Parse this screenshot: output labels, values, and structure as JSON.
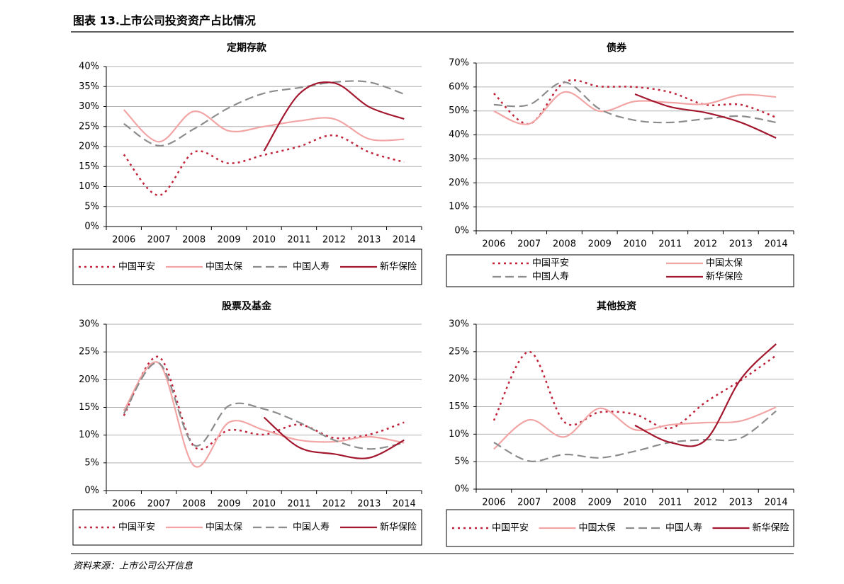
{
  "header": {
    "title": "图表 13.上市公司投资资产占比情况"
  },
  "source": "资料来源：上市公司公开信息",
  "chart_data": [
    {
      "type": "line",
      "title": "定期存款",
      "categories": [
        "2006",
        "2007",
        "2008",
        "2009",
        "2010",
        "2011",
        "2012",
        "2013",
        "2014"
      ],
      "ylim": [
        0,
        40
      ],
      "yticks": [
        {
          "value": 0,
          "label": "0%"
        },
        {
          "value": 5,
          "label": "5%"
        },
        {
          "value": 10,
          "label": "10%"
        },
        {
          "value": 15,
          "label": "15%"
        },
        {
          "value": 20,
          "label": "20%"
        },
        {
          "value": 25,
          "label": "25%"
        },
        {
          "value": 30,
          "label": "30%"
        },
        {
          "value": 35,
          "label": "35%"
        },
        {
          "value": 40,
          "label": "40%"
        }
      ],
      "grid": true,
      "series": [
        {
          "name": "中国平安",
          "color": "#c0233a",
          "dash": "dotted",
          "values": [
            18,
            7.8,
            18.6,
            15.8,
            17.9,
            20,
            22.8,
            18.6,
            16.1
          ]
        },
        {
          "name": "中国太保",
          "color": "#f2a5a5",
          "dash": "solid",
          "values": [
            29.2,
            21.2,
            28.8,
            23.9,
            25,
            26.4,
            26.9,
            21.9,
            21.8
          ]
        },
        {
          "name": "中国人寿",
          "color": "#8c8c8c",
          "dash": "dashed",
          "values": [
            25.7,
            20.2,
            24.4,
            29.7,
            33.3,
            34.7,
            36.1,
            36.1,
            33.1
          ]
        },
        {
          "name": "新华保险",
          "color": "#a3182f",
          "dash": "solid",
          "values": [
            null,
            null,
            null,
            null,
            18.9,
            33.1,
            35.9,
            29.9,
            26.9
          ]
        }
      ]
    },
    {
      "type": "line",
      "title": "债券",
      "categories": [
        "2006",
        "2007",
        "2008",
        "2009",
        "2010",
        "2011",
        "2012",
        "2013",
        "2014"
      ],
      "ylim": [
        0,
        70
      ],
      "yticks": [
        {
          "value": 0,
          "label": "0%"
        },
        {
          "value": 10,
          "label": "10%"
        },
        {
          "value": 20,
          "label": "20%"
        },
        {
          "value": 30,
          "label": "30%"
        },
        {
          "value": 40,
          "label": "40%"
        },
        {
          "value": 50,
          "label": "50%"
        },
        {
          "value": 60,
          "label": "60%"
        },
        {
          "value": 70,
          "label": "70%"
        }
      ],
      "grid": true,
      "series": [
        {
          "name": "中国平安",
          "color": "#c0233a",
          "dash": "dotted",
          "values": [
            57.3,
            44.6,
            62,
            60.2,
            60,
            57.8,
            52.6,
            52.6,
            47.3
          ]
        },
        {
          "name": "中国太保",
          "color": "#f2a5a5",
          "dash": "solid",
          "values": [
            49.9,
            44.6,
            57.9,
            49.9,
            54,
            53.5,
            52.9,
            56.7,
            55.8
          ]
        },
        {
          "name": "中国人寿",
          "color": "#8c8c8c",
          "dash": "dashed",
          "values": [
            52.6,
            52.6,
            62,
            50.8,
            46.1,
            45.2,
            46.7,
            47.8,
            45.2
          ]
        },
        {
          "name": "新华保险",
          "color": "#a3182f",
          "dash": "solid",
          "values": [
            null,
            null,
            null,
            null,
            57,
            51.7,
            49.3,
            45.2,
            38.7
          ]
        }
      ]
    },
    {
      "type": "line",
      "title": "股票及基金",
      "categories": [
        "2006",
        "2007",
        "2008",
        "2009",
        "2010",
        "2011",
        "2012",
        "2013",
        "2014"
      ],
      "ylim": [
        0,
        30
      ],
      "yticks": [
        {
          "value": 0,
          "label": "0%"
        },
        {
          "value": 5,
          "label": "5%"
        },
        {
          "value": 10,
          "label": "10%"
        },
        {
          "value": 15,
          "label": "15%"
        },
        {
          "value": 20,
          "label": "20%"
        },
        {
          "value": 25,
          "label": "25%"
        },
        {
          "value": 30,
          "label": "30%"
        }
      ],
      "grid": true,
      "series": [
        {
          "name": "中国平安",
          "color": "#c0233a",
          "dash": "dotted",
          "values": [
            13.5,
            24.1,
            8,
            10.9,
            10.1,
            11.9,
            9.5,
            10.1,
            12.3
          ]
        },
        {
          "name": "中国太保",
          "color": "#f2a5a5",
          "dash": "solid",
          "values": [
            14.4,
            23,
            4.5,
            12.3,
            10.9,
            9.1,
            8.8,
            9.7,
            8.6
          ]
        },
        {
          "name": "中国人寿",
          "color": "#8c8c8c",
          "dash": "dashed",
          "values": [
            13.9,
            23,
            8.2,
            15.3,
            14.7,
            12.3,
            9.1,
            7.5,
            8.6
          ]
        },
        {
          "name": "新华保险",
          "color": "#a3182f",
          "dash": "solid",
          "values": [
            null,
            null,
            null,
            null,
            13.2,
            7.8,
            6.6,
            5.9,
            9.1
          ]
        }
      ]
    },
    {
      "type": "line",
      "title": "其他投资",
      "categories": [
        "2006",
        "2007",
        "2008",
        "2009",
        "2010",
        "2011",
        "2012",
        "2013",
        "2014"
      ],
      "ylim": [
        0,
        30
      ],
      "yticks": [
        {
          "value": 0,
          "label": "0%"
        },
        {
          "value": 5,
          "label": "5%"
        },
        {
          "value": 10,
          "label": "10%"
        },
        {
          "value": 15,
          "label": "15%"
        },
        {
          "value": 20,
          "label": "20%"
        },
        {
          "value": 25,
          "label": "25%"
        },
        {
          "value": 30,
          "label": "30%"
        }
      ],
      "grid": true,
      "series": [
        {
          "name": "中国平安",
          "color": "#c0233a",
          "dash": "dotted",
          "values": [
            12.5,
            25,
            12.2,
            14,
            13.6,
            11.1,
            15.8,
            19.8,
            24.3
          ]
        },
        {
          "name": "中国太保",
          "color": "#f2a5a5",
          "dash": "solid",
          "values": [
            7.3,
            12.6,
            9.5,
            14.7,
            10.8,
            11.7,
            12.1,
            12.4,
            14.9
          ]
        },
        {
          "name": "中国人寿",
          "color": "#8c8c8c",
          "dash": "dashed",
          "values": [
            8.5,
            5.1,
            6.3,
            5.7,
            6.9,
            8.5,
            9,
            9.3,
            14.2
          ]
        },
        {
          "name": "新华保险",
          "color": "#a3182f",
          "dash": "solid",
          "values": [
            null,
            null,
            null,
            null,
            11.6,
            8.5,
            8.9,
            20,
            26.4
          ]
        }
      ]
    }
  ]
}
